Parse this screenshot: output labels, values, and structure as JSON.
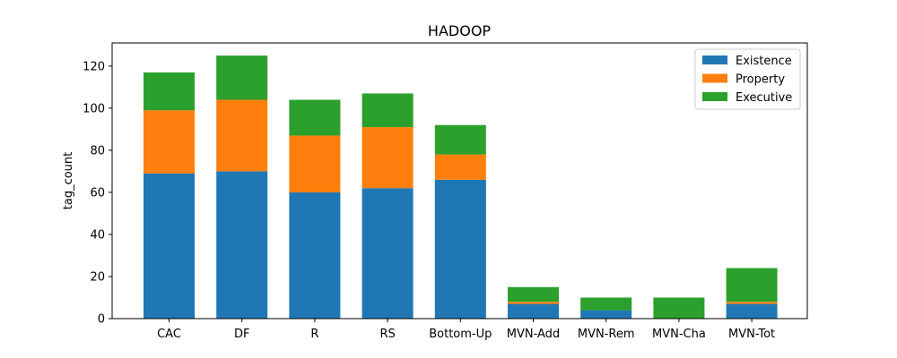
{
  "chart_data": {
    "type": "bar",
    "stacked": true,
    "title": "HADOOP",
    "xlabel": "",
    "ylabel": "tag_count",
    "ylim": [
      0,
      131
    ],
    "yticks": [
      0,
      20,
      40,
      60,
      80,
      100,
      120
    ],
    "grid": false,
    "legend_position": "top-right",
    "categories": [
      "CAC",
      "DF",
      "R",
      "RS",
      "Bottom-Up",
      "MVN-Add",
      "MVN-Rem",
      "MVN-Cha",
      "MVN-Tot"
    ],
    "series": [
      {
        "name": "Existence",
        "color": "#1f77b4",
        "values": [
          69,
          70,
          60,
          62,
          66,
          7,
          4,
          0,
          7
        ]
      },
      {
        "name": "Property",
        "color": "#ff7f0e",
        "values": [
          30,
          34,
          27,
          29,
          12,
          1,
          0,
          0,
          1
        ]
      },
      {
        "name": "Executive",
        "color": "#2ca02c",
        "values": [
          18,
          21,
          17,
          16,
          14,
          7,
          6,
          10,
          16
        ]
      }
    ]
  }
}
